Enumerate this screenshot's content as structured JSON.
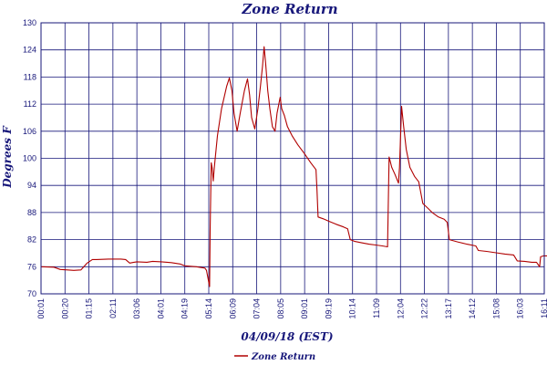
{
  "chart_data": {
    "type": "line",
    "title": "Zone Return",
    "xlabel": "04/09/18 (EST)",
    "ylabel": "Degrees F",
    "ylim": [
      70,
      130
    ],
    "yticks": [
      70,
      76,
      82,
      88,
      94,
      100,
      106,
      112,
      118,
      124,
      130
    ],
    "xlim": [
      "00:01",
      "16:11"
    ],
    "xticks": [
      "00:01",
      "00:20",
      "01:15",
      "02:11",
      "03:06",
      "04:01",
      "04:19",
      "05:14",
      "06:09",
      "07:04",
      "08:05",
      "09:01",
      "09:19",
      "10:14",
      "11:09",
      "12:04",
      "12:22",
      "13:17",
      "14:12",
      "15:08",
      "16:03",
      "16:11"
    ],
    "grid": true,
    "legend_position": "bottom-left",
    "series": [
      {
        "name": "Zone Return",
        "color": "#b00000",
        "points": [
          [
            "00:01",
            76.0
          ],
          [
            "00:26",
            75.9
          ],
          [
            "00:38",
            75.4
          ],
          [
            "00:52",
            75.3
          ],
          [
            "01:04",
            75.2
          ],
          [
            "01:18",
            75.3
          ],
          [
            "01:30",
            76.8
          ],
          [
            "01:40",
            77.6
          ],
          [
            "01:48",
            77.6
          ],
          [
            "02:11",
            77.7
          ],
          [
            "02:35",
            77.7
          ],
          [
            "02:44",
            77.6
          ],
          [
            "02:52",
            76.8
          ],
          [
            "03:00",
            77.0
          ],
          [
            "03:06",
            77.1
          ],
          [
            "03:25",
            77.0
          ],
          [
            "03:36",
            77.2
          ],
          [
            "03:53",
            77.1
          ],
          [
            "04:12",
            76.9
          ],
          [
            "04:29",
            76.6
          ],
          [
            "04:38",
            76.2
          ],
          [
            "05:00",
            76.0
          ],
          [
            "05:17",
            75.7
          ],
          [
            "05:20",
            75.2
          ],
          [
            "05:26",
            71.6
          ],
          [
            "05:27",
            84.0
          ],
          [
            "05:29",
            99.0
          ],
          [
            "05:31",
            97.8
          ],
          [
            "05:33",
            95.0
          ],
          [
            "05:35",
            98.0
          ],
          [
            "05:41",
            105.0
          ],
          [
            "05:49",
            111.0
          ],
          [
            "05:59",
            116.0
          ],
          [
            "06:04",
            117.8
          ],
          [
            "06:09",
            115.0
          ],
          [
            "06:13",
            110.0
          ],
          [
            "06:19",
            106.0
          ],
          [
            "06:25",
            110.0
          ],
          [
            "06:33",
            115.0
          ],
          [
            "06:39",
            117.6
          ],
          [
            "06:43",
            114.0
          ],
          [
            "06:47",
            109.0
          ],
          [
            "06:53",
            106.5
          ],
          [
            "06:59",
            111.0
          ],
          [
            "07:04",
            116.0
          ],
          [
            "07:08",
            120.5
          ],
          [
            "07:11",
            124.7
          ],
          [
            "07:14",
            121.0
          ],
          [
            "07:18",
            115.0
          ],
          [
            "07:22",
            111.0
          ],
          [
            "07:27",
            107.0
          ],
          [
            "07:32",
            106.0
          ],
          [
            "07:36",
            110.0
          ],
          [
            "07:42",
            113.5
          ],
          [
            "07:45",
            111.0
          ],
          [
            "07:50",
            109.5
          ],
          [
            "07:56",
            107.0
          ],
          [
            "08:05",
            105.0
          ],
          [
            "08:16",
            103.0
          ],
          [
            "08:29",
            101.0
          ],
          [
            "08:41",
            99.0
          ],
          [
            "08:51",
            97.5
          ],
          [
            "08:53",
            93.0
          ],
          [
            "08:55",
            87.0
          ],
          [
            "09:05",
            86.6
          ],
          [
            "09:17",
            86.0
          ],
          [
            "09:30",
            85.4
          ],
          [
            "09:44",
            84.8
          ],
          [
            "09:52",
            84.4
          ],
          [
            "09:57",
            82.0
          ],
          [
            "10:06",
            81.6
          ],
          [
            "10:19",
            81.3
          ],
          [
            "10:33",
            81.0
          ],
          [
            "10:46",
            80.8
          ],
          [
            "10:59",
            80.6
          ],
          [
            "11:09",
            80.4
          ],
          [
            "11:12",
            100.3
          ],
          [
            "11:17",
            98.0
          ],
          [
            "11:23",
            96.5
          ],
          [
            "11:30",
            94.5
          ],
          [
            "11:32",
            98.0
          ],
          [
            "11:34",
            105.0
          ],
          [
            "11:36",
            111.5
          ],
          [
            "11:40",
            107.0
          ],
          [
            "11:45",
            102.0
          ],
          [
            "11:52",
            98.0
          ],
          [
            "12:01",
            96.0
          ],
          [
            "12:09",
            94.8
          ],
          [
            "12:17",
            90.0
          ],
          [
            "12:26",
            89.0
          ],
          [
            "12:35",
            88.0
          ],
          [
            "12:47",
            87.0
          ],
          [
            "12:58",
            86.5
          ],
          [
            "13:04",
            85.8
          ],
          [
            "13:08",
            82.0
          ],
          [
            "13:24",
            81.5
          ],
          [
            "13:42",
            81.0
          ],
          [
            "13:59",
            80.6
          ],
          [
            "14:04",
            79.6
          ],
          [
            "14:20",
            79.4
          ],
          [
            "14:38",
            79.1
          ],
          [
            "14:55",
            78.8
          ],
          [
            "15:12",
            78.6
          ],
          [
            "15:19",
            77.3
          ],
          [
            "15:33",
            77.2
          ],
          [
            "15:47",
            77.0
          ],
          [
            "15:56",
            77.0
          ],
          [
            "16:02",
            76.0
          ],
          [
            "16:04",
            78.2
          ],
          [
            "16:10",
            78.4
          ],
          [
            "16:23",
            78.4
          ]
        ]
      }
    ]
  }
}
